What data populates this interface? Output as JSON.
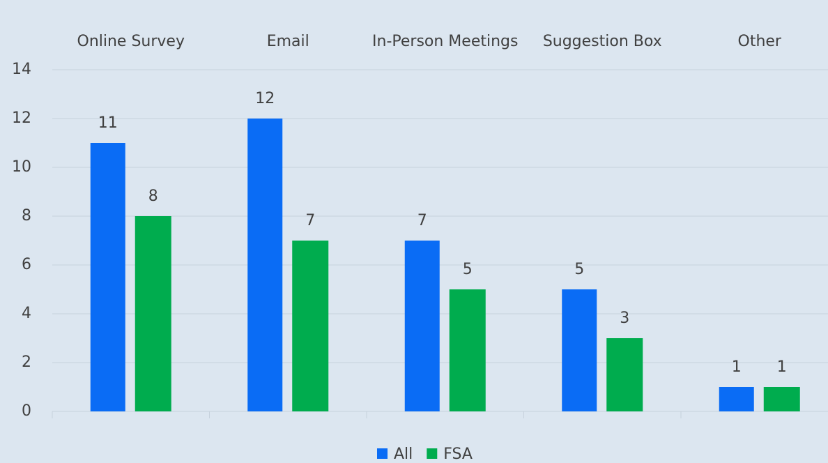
{
  "chart_data": {
    "type": "bar",
    "categories": [
      "Online Survey",
      "Email",
      "In-Person Meetings",
      "Suggestion Box",
      "Other"
    ],
    "series": [
      {
        "name": "All",
        "color": "#0a6cf5",
        "values": [
          11,
          12,
          7,
          5,
          1
        ]
      },
      {
        "name": "FSA",
        "color": "#00ac4e",
        "values": [
          8,
          7,
          5,
          3,
          1
        ]
      }
    ],
    "ylim": [
      0,
      14
    ],
    "yticks": [
      0,
      2,
      4,
      6,
      8,
      10,
      12,
      14
    ],
    "grid": true,
    "legend": "bottom"
  }
}
